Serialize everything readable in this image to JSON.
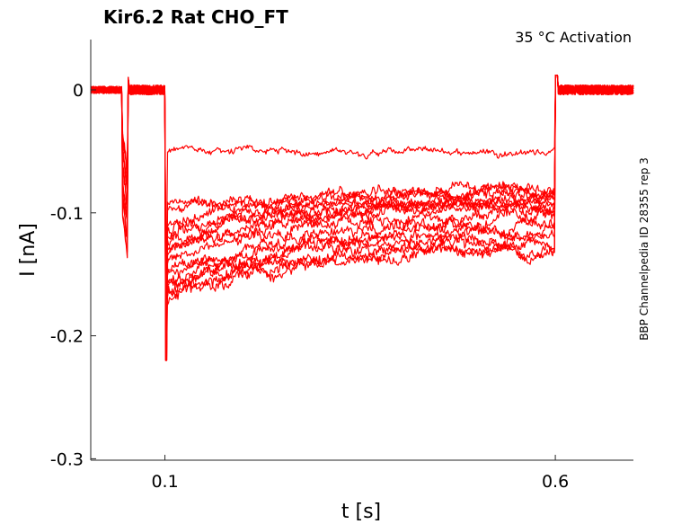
{
  "chart_data": {
    "type": "line",
    "title": "Kir6.2  Rat  CHO_FT",
    "annotation": "35 °C  Activation",
    "side_label": "BBP Channelpedia ID 28355 rep 3",
    "xlabel": "t [s]",
    "ylabel": "I [nA]",
    "xlim": [
      0.005,
      0.7
    ],
    "ylim": [
      -0.3,
      0.04
    ],
    "x_ticks": [
      {
        "value": 0.1,
        "label": "0.1"
      },
      {
        "value": 0.6,
        "label": "0.6"
      }
    ],
    "y_ticks": [
      {
        "value": 0,
        "label": "0"
      },
      {
        "value": -0.1,
        "label": "-0.1"
      },
      {
        "value": -0.2,
        "label": "-0.2"
      },
      {
        "value": -0.3,
        "label": "-0.3"
      }
    ],
    "grid": false,
    "line_color": "#ff0000",
    "steps": {
      "prepulse_start": 0.045,
      "prepulse_end": 0.052,
      "step_start": 0.1,
      "step_end": 0.6
    },
    "series": [
      {
        "start": -0.05,
        "end": -0.05,
        "noise": 0.003
      },
      {
        "start": -0.09,
        "end": -0.093,
        "noise": 0.0035
      },
      {
        "start": -0.1,
        "end": -0.085,
        "noise": 0.005
      },
      {
        "start": -0.11,
        "end": -0.08,
        "noise": 0.005
      },
      {
        "start": -0.115,
        "end": -0.082,
        "noise": 0.005
      },
      {
        "start": -0.12,
        "end": -0.088,
        "noise": 0.005
      },
      {
        "start": -0.125,
        "end": -0.09,
        "noise": 0.005
      },
      {
        "start": -0.13,
        "end": -0.095,
        "noise": 0.005
      },
      {
        "start": -0.135,
        "end": -0.09,
        "noise": 0.005
      },
      {
        "start": -0.14,
        "end": -0.1,
        "noise": 0.005
      },
      {
        "start": -0.145,
        "end": -0.11,
        "noise": 0.005
      },
      {
        "start": -0.15,
        "end": -0.115,
        "noise": 0.005
      },
      {
        "start": -0.155,
        "end": -0.12,
        "noise": 0.005
      },
      {
        "start": -0.16,
        "end": -0.125,
        "noise": 0.0055
      },
      {
        "start": -0.165,
        "end": -0.128,
        "noise": 0.0055
      },
      {
        "start": -0.17,
        "end": -0.13,
        "noise": 0.0055
      },
      {
        "start": -0.175,
        "end": -0.105,
        "noise": 0.0055
      }
    ]
  }
}
